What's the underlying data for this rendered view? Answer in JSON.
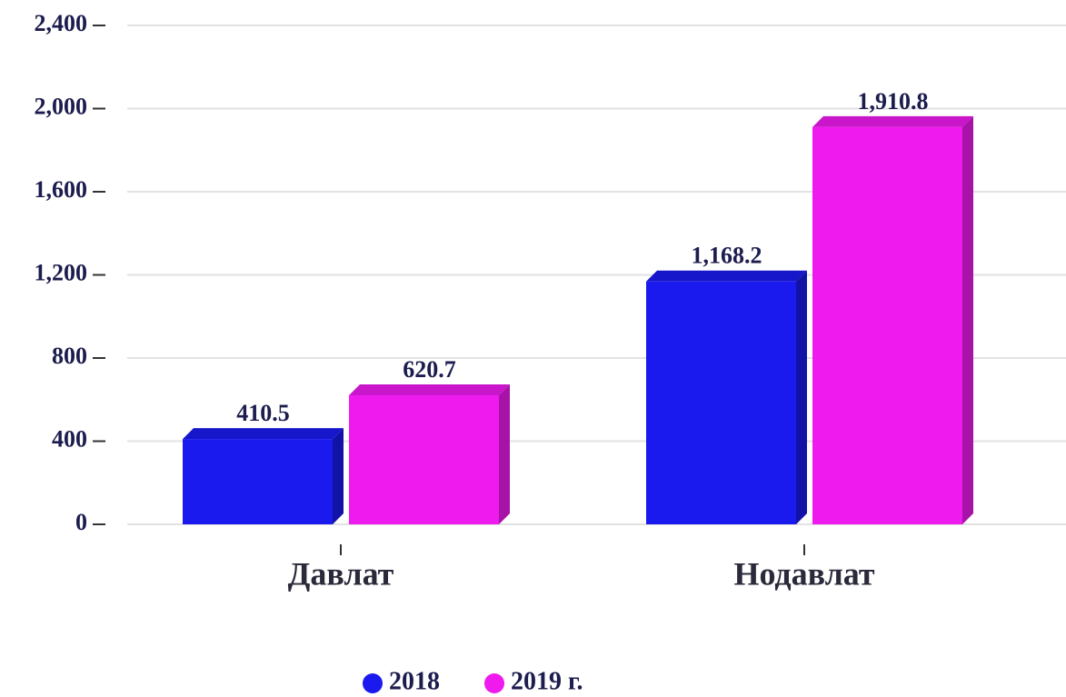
{
  "chart_data": {
    "type": "bar",
    "categories": [
      "Давлат",
      "Нодавлат"
    ],
    "series": [
      {
        "name": "2018",
        "color": "#1a1aee",
        "values": [
          410.5,
          1168.2
        ],
        "value_labels": [
          "410.5",
          "1,168.2"
        ]
      },
      {
        "name": "2019 г.",
        "color": "#ee1aee",
        "values": [
          620.7,
          1910.8
        ],
        "value_labels": [
          "620.7",
          "1,910.8"
        ]
      }
    ],
    "ylim": [
      0,
      2400
    ],
    "yticks": [
      0,
      400,
      800,
      {
        "value": 1200,
        "label": "1,200"
      },
      {
        "value": 1600,
        "label": "1,600"
      },
      {
        "value": 2000,
        "label": "2,000"
      },
      {
        "value": 2400,
        "label": "2,400"
      }
    ],
    "grid": true
  }
}
